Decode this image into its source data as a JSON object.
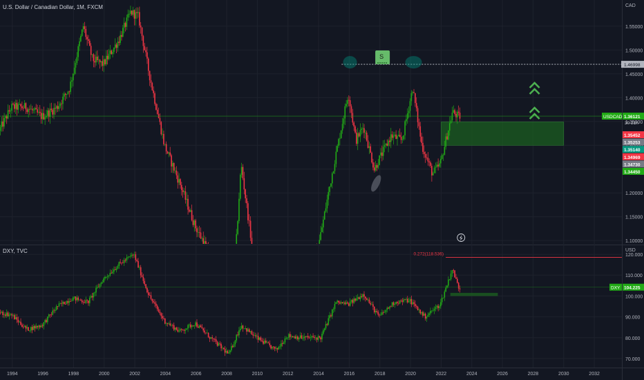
{
  "chart_data": [
    {
      "type": "candlestick",
      "title": "U.S. Dollar / Canadian Dollar, 1M, FXCM",
      "currency": "CAD",
      "symbol_label": "USDCAD",
      "last_price": "1.36121",
      "countdown": "30 21h",
      "y_ticks": [
        "1.55000",
        "1.50000",
        "1.45000",
        "1.40000",
        "1.35000",
        "1.30000",
        "1.25000",
        "1.20000",
        "1.15000",
        "1.10000"
      ],
      "ylim": [
        1.093,
        1.605
      ],
      "resistance_level": "1.46998",
      "price_badges": [
        {
          "text": "1.35452",
          "color": "#f23645"
        },
        {
          "text": "1.35253",
          "color": "#787b86"
        },
        {
          "text": "1.35140",
          "color": "#089981"
        },
        {
          "text": "1.34969",
          "color": "#f23645"
        },
        {
          "text": "1.34730",
          "color": "#787b86"
        },
        {
          "text": "1.34450",
          "color": "#22ab16"
        }
      ],
      "annotation_icon": "S",
      "series_trend": [
        {
          "x": 1993.2,
          "y": 1.33
        },
        {
          "x": 1994.0,
          "y": 1.38
        },
        {
          "x": 1995.0,
          "y": 1.38
        },
        {
          "x": 1996.0,
          "y": 1.36
        },
        {
          "x": 1997.0,
          "y": 1.38
        },
        {
          "x": 1997.8,
          "y": 1.42
        },
        {
          "x": 1998.7,
          "y": 1.55
        },
        {
          "x": 1999.3,
          "y": 1.48
        },
        {
          "x": 2000.0,
          "y": 1.47
        },
        {
          "x": 2001.0,
          "y": 1.52
        },
        {
          "x": 2001.8,
          "y": 1.58
        },
        {
          "x": 2002.3,
          "y": 1.57
        },
        {
          "x": 2003.0,
          "y": 1.45
        },
        {
          "x": 2004.0,
          "y": 1.3
        },
        {
          "x": 2005.0,
          "y": 1.22
        },
        {
          "x": 2006.0,
          "y": 1.13
        },
        {
          "x": 2007.0,
          "y": 1.07
        },
        {
          "x": 2007.8,
          "y": 0.95
        },
        {
          "x": 2008.5,
          "y": 1.0
        },
        {
          "x": 2009.0,
          "y": 1.26
        },
        {
          "x": 2010.0,
          "y": 1.02
        },
        {
          "x": 2011.0,
          "y": 0.98
        },
        {
          "x": 2012.0,
          "y": 1.0
        },
        {
          "x": 2013.0,
          "y": 1.03
        },
        {
          "x": 2014.0,
          "y": 1.08
        },
        {
          "x": 2015.0,
          "y": 1.25
        },
        {
          "x": 2016.0,
          "y": 1.41
        },
        {
          "x": 2016.5,
          "y": 1.31
        },
        {
          "x": 2017.0,
          "y": 1.34
        },
        {
          "x": 2017.7,
          "y": 1.25
        },
        {
          "x": 2018.0,
          "y": 1.27
        },
        {
          "x": 2018.8,
          "y": 1.32
        },
        {
          "x": 2019.5,
          "y": 1.31
        },
        {
          "x": 2020.2,
          "y": 1.42
        },
        {
          "x": 2020.8,
          "y": 1.3
        },
        {
          "x": 2021.5,
          "y": 1.24
        },
        {
          "x": 2022.0,
          "y": 1.26
        },
        {
          "x": 2022.8,
          "y": 1.37
        },
        {
          "x": 2023.2,
          "y": 1.36
        }
      ]
    },
    {
      "type": "candlestick",
      "title": "DXY, TVC",
      "currency": "USD",
      "symbol_label": "DXY",
      "last_price": "104.225",
      "y_ticks": [
        "120.000",
        "110.000",
        "100.000",
        "90.000",
        "80.000",
        "70.000"
      ],
      "ylim": [
        66,
        124
      ],
      "fib_label": "0.272(118.536)",
      "fib_level": 118.536,
      "series_trend": [
        {
          "x": 1993.2,
          "y": 92
        },
        {
          "x": 1994.0,
          "y": 91
        },
        {
          "x": 1995.0,
          "y": 84
        },
        {
          "x": 1996.0,
          "y": 86
        },
        {
          "x": 1997.0,
          "y": 95
        },
        {
          "x": 1998.0,
          "y": 99
        },
        {
          "x": 1999.0,
          "y": 97
        },
        {
          "x": 2000.0,
          "y": 108
        },
        {
          "x": 2001.0,
          "y": 115
        },
        {
          "x": 2002.0,
          "y": 120
        },
        {
          "x": 2003.0,
          "y": 100
        },
        {
          "x": 2004.0,
          "y": 88
        },
        {
          "x": 2005.0,
          "y": 83
        },
        {
          "x": 2006.0,
          "y": 87
        },
        {
          "x": 2007.0,
          "y": 80
        },
        {
          "x": 2008.2,
          "y": 72
        },
        {
          "x": 2009.0,
          "y": 86
        },
        {
          "x": 2010.0,
          "y": 80
        },
        {
          "x": 2011.3,
          "y": 74
        },
        {
          "x": 2012.0,
          "y": 81
        },
        {
          "x": 2013.0,
          "y": 80
        },
        {
          "x": 2014.2,
          "y": 80
        },
        {
          "x": 2015.2,
          "y": 97
        },
        {
          "x": 2016.0,
          "y": 96
        },
        {
          "x": 2017.0,
          "y": 101
        },
        {
          "x": 2018.0,
          "y": 90
        },
        {
          "x": 2019.0,
          "y": 97
        },
        {
          "x": 2020.0,
          "y": 98
        },
        {
          "x": 2021.0,
          "y": 90
        },
        {
          "x": 2022.0,
          "y": 96
        },
        {
          "x": 2022.8,
          "y": 113
        },
        {
          "x": 2023.2,
          "y": 104
        }
      ]
    }
  ],
  "time_axis": {
    "labels": [
      "1994",
      "1996",
      "1998",
      "2000",
      "2002",
      "2004",
      "2006",
      "2008",
      "2010",
      "2012",
      "2014",
      "2016",
      "2018",
      "2020",
      "2022",
      "2024",
      "2026",
      "2028",
      "2030",
      "2032"
    ],
    "range": [
      1993.2,
      2033.8
    ]
  },
  "colors": {
    "background": "#131722",
    "up": "#22ab16",
    "down": "#f23645",
    "grid": "#1e222d",
    "axis_text": "#b2b5be",
    "zone": "#1b5e20",
    "chevron": "#4caf50",
    "fib": "#f23645"
  }
}
